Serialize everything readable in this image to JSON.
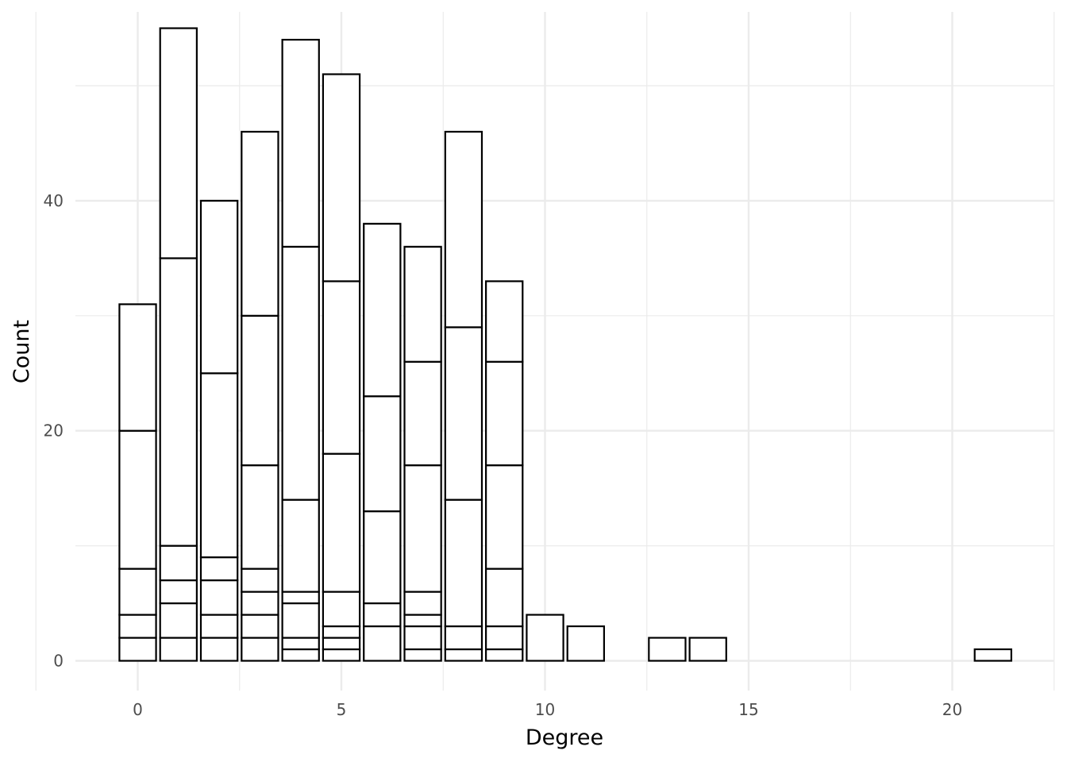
{
  "chart_data": {
    "type": "bar",
    "stacked": true,
    "xlabel": "Degree",
    "ylabel": "Count",
    "xlim": [
      -1.5,
      22.5
    ],
    "ylim": [
      -2.5,
      56.5
    ],
    "x_ticks": [
      0,
      5,
      10,
      15,
      20
    ],
    "y_ticks": [
      0,
      20,
      40
    ],
    "grid": true,
    "colors": {
      "bar_fill": "#ffffff",
      "bar_stroke": "#000000",
      "grid": "#ebebeb",
      "tick_text": "#4d4d4d"
    },
    "bars": [
      {
        "x": 0,
        "segments": [
          2,
          2,
          4,
          12,
          11
        ]
      },
      {
        "x": 1,
        "segments": [
          2,
          3,
          2,
          3,
          25,
          20
        ]
      },
      {
        "x": 2,
        "segments": [
          2,
          2,
          3,
          2,
          16,
          15
        ]
      },
      {
        "x": 3,
        "segments": [
          2,
          2,
          2,
          2,
          9,
          13,
          16
        ]
      },
      {
        "x": 4,
        "segments": [
          1,
          1,
          3,
          1,
          8,
          22,
          18
        ]
      },
      {
        "x": 5,
        "segments": [
          1,
          1,
          1,
          3,
          12,
          15,
          18
        ]
      },
      {
        "x": 6,
        "segments": [
          3,
          2,
          8,
          10,
          15
        ]
      },
      {
        "x": 7,
        "segments": [
          1,
          2,
          1,
          2,
          11,
          9,
          10
        ]
      },
      {
        "x": 8,
        "segments": [
          1,
          2,
          11,
          15,
          17
        ]
      },
      {
        "x": 9,
        "segments": [
          1,
          2,
          5,
          9,
          9,
          7
        ]
      },
      {
        "x": 10,
        "segments": [
          4
        ]
      },
      {
        "x": 11,
        "segments": [
          3
        ]
      },
      {
        "x": 13,
        "segments": [
          2
        ]
      },
      {
        "x": 14,
        "segments": [
          2
        ]
      },
      {
        "x": 21,
        "segments": [
          1
        ]
      }
    ]
  }
}
